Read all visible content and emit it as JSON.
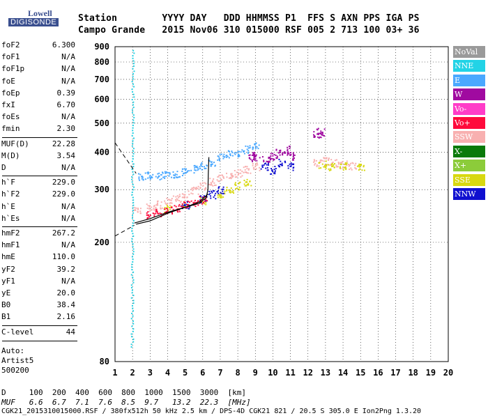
{
  "logo": {
    "top": "Lowell",
    "bottom": "DIGISONDE"
  },
  "header": {
    "row1": "Station        YYYY DAY   DDD HHMMSS P1  FFS S AXN PPS IGA PS",
    "row2": "Campo Grande   2015 Nov06 310 015000 RSF 005 2 713 100 03+ 36"
  },
  "params": [
    {
      "k": "foF2",
      "v": "6.300"
    },
    {
      "k": "foF1",
      "v": "N/A"
    },
    {
      "k": "foF1p",
      "v": "N/A"
    },
    {
      "k": "foE",
      "v": "N/A"
    },
    {
      "k": "foEp",
      "v": "0.39"
    },
    {
      "k": "fxI",
      "v": "6.70"
    },
    {
      "k": "foEs",
      "v": "N/A"
    },
    {
      "k": "fmin",
      "v": "2.30"
    },
    {
      "k": "MUF(D)",
      "v": "22.28"
    },
    {
      "k": "M(D)",
      "v": "3.54"
    },
    {
      "k": "D",
      "v": "N/A"
    },
    {
      "k": "h`F",
      "v": "229.0"
    },
    {
      "k": "h`F2",
      "v": "229.0"
    },
    {
      "k": "h`E",
      "v": "N/A"
    },
    {
      "k": "h`Es",
      "v": "N/A"
    },
    {
      "k": "hmF2",
      "v": "267.2"
    },
    {
      "k": "hmF1",
      "v": "N/A"
    },
    {
      "k": "hmE",
      "v": "110.0"
    },
    {
      "k": "yF2",
      "v": "39.2"
    },
    {
      "k": "yF1",
      "v": "N/A"
    },
    {
      "k": "yE",
      "v": "20.0"
    },
    {
      "k": "B0",
      "v": "38.4"
    },
    {
      "k": "B1",
      "v": "2.16"
    },
    {
      "k": "C-level",
      "v": "44"
    }
  ],
  "auto": {
    "l1": "Auto:",
    "l2": "Artist5",
    "l3": "500200"
  },
  "legend": [
    {
      "label": "NoVal",
      "bg": "#9a9a9a",
      "fg": "#ffffff"
    },
    {
      "label": "NNE",
      "bg": "#22d3e6",
      "fg": "#ffffff"
    },
    {
      "label": "E",
      "bg": "#4aa8ff",
      "fg": "#ffffff"
    },
    {
      "label": "W",
      "bg": "#a00aa0",
      "fg": "#ffffff"
    },
    {
      "label": "Vo-",
      "bg": "#ff3cc8",
      "fg": "#ffffff"
    },
    {
      "label": "Vo+",
      "bg": "#ff0a3c",
      "fg": "#ffffff"
    },
    {
      "label": "SSW",
      "bg": "#f8b0b0",
      "fg": "#ffffff"
    },
    {
      "label": "X-",
      "bg": "#0a7a0a",
      "fg": "#ffffff"
    },
    {
      "label": "X+",
      "bg": "#8ccc3a",
      "fg": "#ffffff"
    },
    {
      "label": "SSE",
      "bg": "#d8d810",
      "fg": "#ffffff"
    },
    {
      "label": "NNW",
      "bg": "#1010d0",
      "fg": "#ffffff"
    }
  ],
  "chart_data": {
    "type": "scatter",
    "title": "",
    "xlabel": "",
    "ylabel": "",
    "xlim": [
      1,
      20
    ],
    "ylim": [
      80,
      900
    ],
    "y_scale": "log",
    "x_ticks": [
      1,
      2,
      3,
      4,
      5,
      6,
      7,
      8,
      9,
      10,
      11,
      12,
      13,
      14,
      15,
      16,
      17,
      18,
      19,
      20
    ],
    "y_ticks": [
      80,
      200,
      300,
      400,
      500,
      600,
      700,
      800,
      900
    ],
    "profile_curve": [
      [
        2.1,
        232
      ],
      [
        3,
        240
      ],
      [
        4,
        252
      ],
      [
        5,
        262
      ],
      [
        5.8,
        270
      ],
      [
        6.2,
        282
      ],
      [
        6.3,
        300
      ],
      [
        6.32,
        340
      ],
      [
        6.35,
        385
      ]
    ],
    "trace_f2": [
      [
        2.2,
        230
      ],
      [
        3,
        236
      ],
      [
        4,
        250
      ],
      [
        5,
        262
      ],
      [
        5.8,
        273
      ],
      [
        6.3,
        290
      ]
    ],
    "band_vertical": [
      1.9,
      1.9,
      2.0,
      2.0
    ],
    "clusters": [
      {
        "name": "E",
        "color": "#4aa8ff",
        "pts": [
          [
            2.5,
            333
          ],
          [
            3,
            335
          ],
          [
            3.5,
            335
          ],
          [
            4,
            336
          ],
          [
            4.5,
            340
          ],
          [
            5,
            345
          ],
          [
            5.5,
            352
          ],
          [
            6,
            362
          ],
          [
            6.5,
            372
          ],
          [
            7,
            385
          ],
          [
            7.5,
            395
          ],
          [
            8,
            400
          ],
          [
            8.5,
            410
          ],
          [
            9,
            420
          ]
        ]
      },
      {
        "name": "SSW",
        "color": "#f8b0b0",
        "pts": [
          [
            2.3,
            258
          ],
          [
            3,
            262
          ],
          [
            3.5,
            268
          ],
          [
            4,
            275
          ],
          [
            4.5,
            282
          ],
          [
            5,
            290
          ],
          [
            5.5,
            300
          ],
          [
            6,
            310
          ],
          [
            6.5,
            320
          ],
          [
            7,
            328
          ],
          [
            7.5,
            336
          ],
          [
            8,
            342
          ],
          [
            8.5,
            350
          ],
          [
            9,
            360
          ],
          [
            12.5,
            370
          ],
          [
            13,
            375
          ],
          [
            13.5,
            370
          ],
          [
            14,
            365
          ],
          [
            14.5,
            362
          ]
        ]
      },
      {
        "name": "W",
        "color": "#a00aa0",
        "pts": [
          [
            9.6,
            380
          ],
          [
            10,
            390
          ],
          [
            10.3,
            400
          ],
          [
            10.8,
            410
          ],
          [
            11,
            390
          ],
          [
            8.8,
            390
          ],
          [
            9,
            385
          ],
          [
            12.5,
            460
          ],
          [
            12.7,
            470
          ]
        ]
      },
      {
        "name": "SSE",
        "color": "#d8d810",
        "pts": [
          [
            4,
            260
          ],
          [
            5,
            268
          ],
          [
            6,
            275
          ],
          [
            7,
            290
          ],
          [
            7.5,
            300
          ],
          [
            8,
            310
          ],
          [
            8.5,
            320
          ],
          [
            12.8,
            365
          ],
          [
            13.3,
            360
          ],
          [
            14,
            360
          ],
          [
            15,
            360
          ]
        ]
      },
      {
        "name": "NNW",
        "color": "#1010d0",
        "pts": [
          [
            5,
            268
          ],
          [
            6,
            280
          ],
          [
            6.5,
            290
          ],
          [
            7,
            300
          ],
          [
            9.5,
            360
          ],
          [
            10,
            350
          ],
          [
            10.5,
            370
          ],
          [
            11,
            360
          ]
        ]
      },
      {
        "name": "Vo+",
        "color": "#ff0a3c",
        "pts": [
          [
            3,
            248
          ],
          [
            3.5,
            252
          ],
          [
            4,
            258
          ],
          [
            4.5,
            262
          ],
          [
            5,
            268
          ],
          [
            5.5,
            272
          ],
          [
            6,
            278
          ]
        ]
      }
    ]
  },
  "bottom": {
    "d_row": "D     100  200  400  600  800  1000  1500  3000  [km]",
    "muf_row": "MUF   6.6  6.7  7.1  7.6  8.5  9.7   13.2  22.3  [MHz]",
    "info": "CGK21_2015310015000.RSF / 380fx512h 50 kHz 2.5 km / DPS-4D CGK21 821 / 20.5 S 305.0 E Ion2Png 1.3.20"
  }
}
